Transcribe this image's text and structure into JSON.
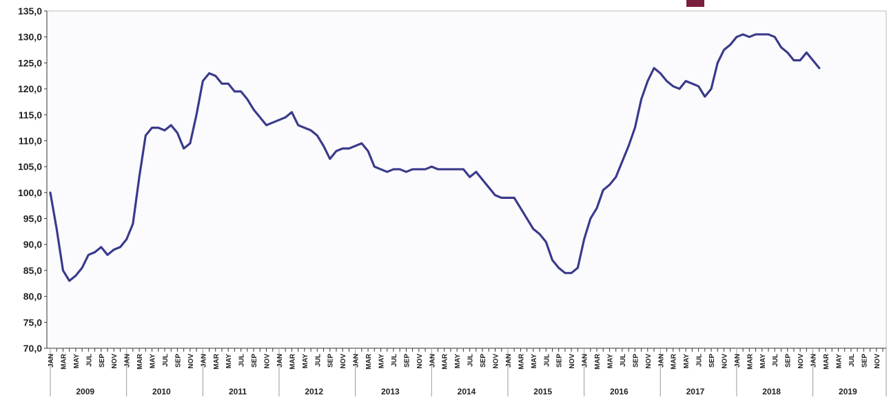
{
  "chart_data": {
    "type": "line",
    "title": "",
    "xlabel": "",
    "ylabel": "",
    "ylim": [
      70,
      135
    ],
    "yticks": [
      "70,0",
      "75,0",
      "80,0",
      "85,0",
      "90,0",
      "95,0",
      "100,0",
      "105,0",
      "110,0",
      "115,0",
      "120,0",
      "125,0",
      "130,0",
      "135,0"
    ],
    "month_labels": [
      "JAN",
      "MAR",
      "MAY",
      "JUL",
      "SEP",
      "NOV"
    ],
    "years": [
      "2009",
      "2010",
      "2011",
      "2012",
      "2013",
      "2014",
      "2015",
      "2016",
      "2017",
      "2018",
      "2019"
    ],
    "grid": false,
    "legend": "none",
    "colors": {
      "line": "#3a3a8c",
      "legend_marker": "#7a1f3d",
      "axis": "#333333"
    },
    "series": [
      {
        "values": [
          100.0,
          93.0,
          85.0,
          83.0,
          84.0,
          85.5,
          88.0,
          88.5,
          89.5,
          88.0,
          89.0,
          89.5,
          91.0,
          94.0,
          103.0,
          111.0,
          112.5,
          112.5,
          112.0,
          113.0,
          111.5,
          108.5,
          109.5,
          115.0,
          121.5,
          123.0,
          122.5,
          121.0,
          121.0,
          119.5,
          119.5,
          118.0,
          116.0,
          114.5,
          113.0,
          113.5,
          114.0,
          114.5,
          115.5,
          113.0,
          112.5,
          112.0,
          111.0,
          109.0,
          106.5,
          108.0,
          108.5,
          108.5,
          109.0,
          109.5,
          108.0,
          105.0,
          104.5,
          104.0,
          104.5,
          104.5,
          104.0,
          104.5,
          104.5,
          104.5,
          105.0,
          104.5,
          104.5,
          104.5,
          104.5,
          104.5,
          103.0,
          104.0,
          102.5,
          101.0,
          99.5,
          99.0,
          99.0,
          99.0,
          97.0,
          95.0,
          93.0,
          92.0,
          90.5,
          87.0,
          85.5,
          84.5,
          84.5,
          85.5,
          91.0,
          95.0,
          97.0,
          100.5,
          101.5,
          103.0,
          106.0,
          109.0,
          112.5,
          118.0,
          121.5,
          124.0,
          123.0,
          121.5,
          120.5,
          120.0,
          121.5,
          121.0,
          120.5,
          118.5,
          120.0,
          125.0,
          127.5,
          128.5,
          130.0,
          130.5,
          130.0,
          130.5,
          130.5,
          130.5,
          130.0,
          128.0,
          127.0,
          125.5,
          125.5,
          127.0,
          125.5,
          124.0
        ]
      }
    ]
  }
}
